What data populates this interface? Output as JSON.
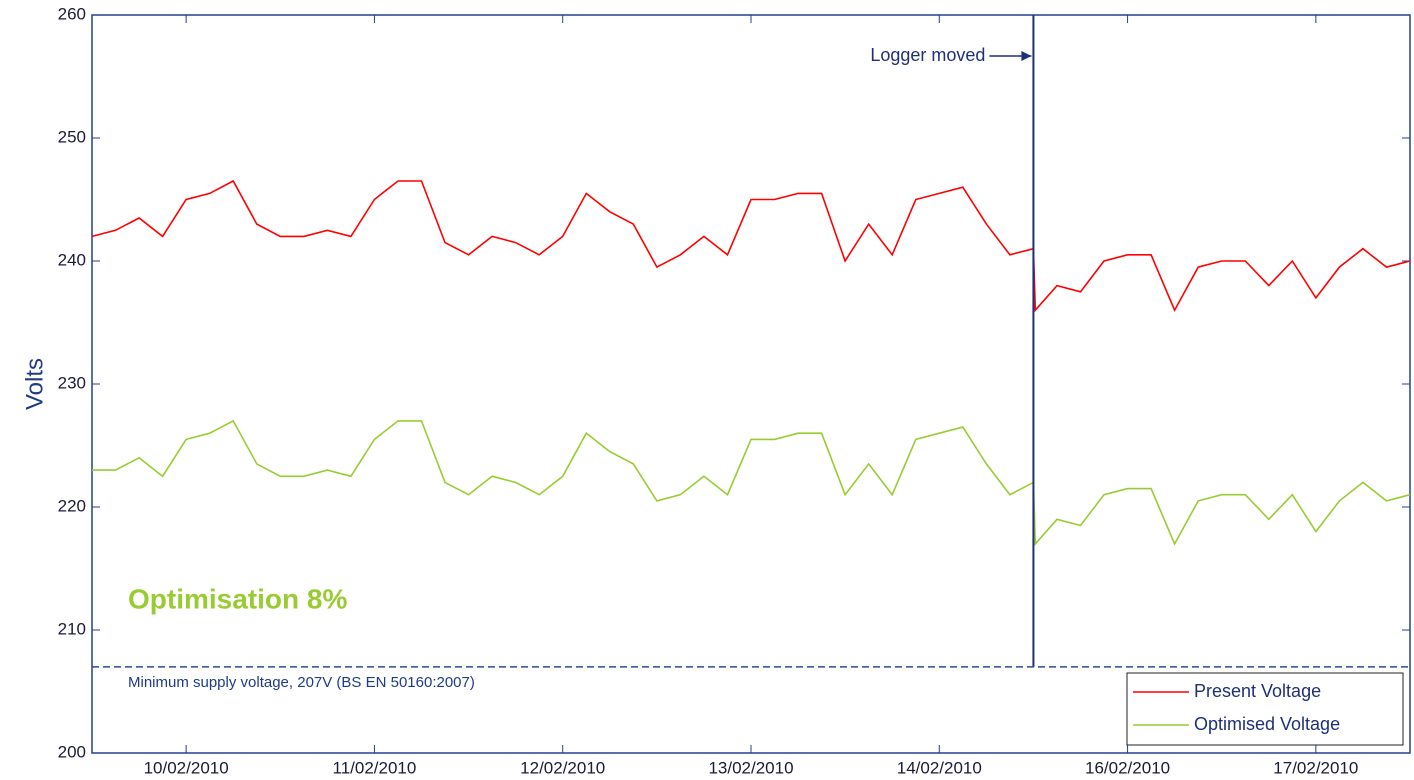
{
  "chart_data": {
    "type": "line",
    "ylabel": "Volts",
    "x": [
      9.5,
      9.625,
      9.75,
      9.875,
      10,
      10.125,
      10.25,
      10.375,
      10.5,
      10.625,
      10.75,
      10.875,
      11,
      11.125,
      11.25,
      11.375,
      11.5,
      11.625,
      11.75,
      11.875,
      12,
      12.125,
      12.25,
      12.375,
      12.5,
      12.625,
      12.75,
      12.875,
      13,
      13.125,
      13.25,
      13.375,
      13.5,
      13.625,
      13.75,
      13.875,
      14,
      14.125,
      14.25,
      14.375,
      14.5,
      14.51,
      14.625,
      14.75,
      14.875,
      15,
      15.125,
      15.25,
      15.375,
      15.5,
      15.625,
      15.75,
      15.875,
      16,
      16.125,
      16.25,
      16.375,
      16.5
    ],
    "series": [
      {
        "name": "Present Voltage",
        "color": "#ff0000",
        "values": [
          242,
          242.5,
          243.5,
          242,
          245,
          245.5,
          246.5,
          243,
          242,
          242,
          242.5,
          242,
          245,
          246.5,
          246.5,
          241.5,
          240.5,
          242,
          241.5,
          240.5,
          242,
          245.5,
          244,
          243,
          239.5,
          240.5,
          242,
          240.5,
          245,
          245,
          245.5,
          245.5,
          240,
          243,
          240.5,
          245,
          245.5,
          246,
          243,
          240.5,
          241,
          236,
          238,
          237.5,
          240,
          240.5,
          240.5,
          236,
          239.5,
          240,
          240,
          238,
          240,
          237,
          239.5,
          241,
          239.5,
          240
        ]
      },
      {
        "name": "Optimised Voltage",
        "color": "#99cc33",
        "values": [
          223,
          223,
          224,
          222.5,
          225.5,
          226,
          227,
          223.5,
          222.5,
          222.5,
          223,
          222.5,
          225.5,
          227,
          227,
          222,
          221,
          222.5,
          222,
          221,
          222.5,
          226,
          224.5,
          223.5,
          220.5,
          221,
          222.5,
          221,
          225.5,
          225.5,
          226,
          226,
          221,
          223.5,
          221,
          225.5,
          226,
          226.5,
          223.5,
          221,
          222,
          217,
          219,
          218.5,
          221,
          221.5,
          221.5,
          217,
          220.5,
          221,
          221,
          219,
          221,
          218,
          220.5,
          222,
          220.5,
          221
        ]
      }
    ],
    "xlim": [
      9.5,
      16.5
    ],
    "xticks": [
      {
        "value": 10,
        "label": "10/02/2010"
      },
      {
        "value": 11,
        "label": "11/02/2010"
      },
      {
        "value": 12,
        "label": "12/02/2010"
      },
      {
        "value": 13,
        "label": "13/02/2010"
      },
      {
        "value": 14,
        "label": "14/02/2010"
      },
      {
        "value": 15,
        "label": "16/02/2010"
      },
      {
        "value": 16,
        "label": "17/02/2010"
      }
    ],
    "ylim": [
      200,
      260
    ],
    "yticks": [
      200,
      210,
      220,
      230,
      240,
      250,
      260
    ],
    "legend": "lower right",
    "annotations": [
      {
        "text": "Logger moved",
        "x": 14.5
      },
      {
        "text": "Optimisation 8%",
        "color": "#99cc33"
      },
      {
        "text": "Minimum supply voltage, 207V (BS EN 50160:2007)",
        "y": 207
      }
    ]
  }
}
